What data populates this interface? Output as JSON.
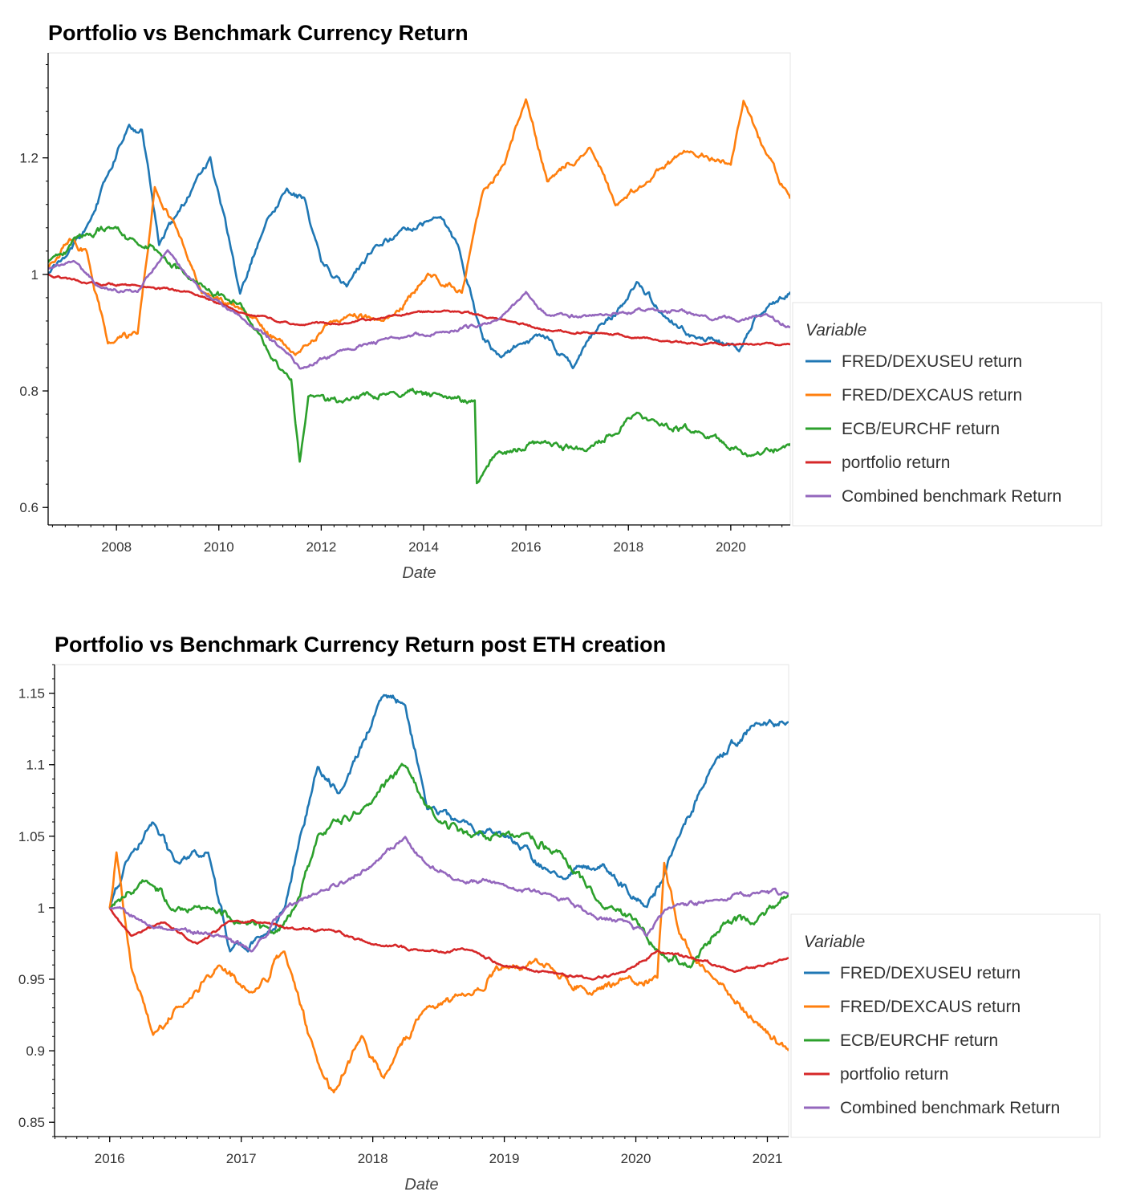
{
  "colors": {
    "FRED/DEXUSEU return": "#1f77b4",
    "FRED/DEXCAUS return": "#ff7f0e",
    "ECB/EURCHF return": "#2ca02c",
    "portfolio return": "#d62728",
    "Combined benchmark Return": "#9467bd"
  },
  "chart_data": [
    {
      "type": "line",
      "title": "Portfolio vs Benchmark Currency Return",
      "xlabel": "Date",
      "ylabel": "",
      "legend_title": "Variable",
      "legend_position": "right",
      "grid": false,
      "xlim": [
        "2006-09-01",
        "2021-03-01"
      ],
      "ylim": [
        0.57,
        1.38
      ],
      "x_ticks": [
        "2008",
        "2010",
        "2012",
        "2014",
        "2016",
        "2018",
        "2020"
      ],
      "y_ticks": [
        "0.6",
        "0.8",
        "1",
        "1.2"
      ],
      "series": [
        {
          "name": "FRED/DEXUSEU return",
          "x": [
            "2006-09-01",
            "2007-01-01",
            "2007-06-01",
            "2007-11-01",
            "2008-04-01",
            "2008-07-01",
            "2008-11-01",
            "2009-03-01",
            "2009-07-01",
            "2009-11-01",
            "2010-06-01",
            "2010-11-01",
            "2011-05-01",
            "2011-09-01",
            "2012-01-01",
            "2012-07-01",
            "2013-02-01",
            "2013-07-01",
            "2014-05-01",
            "2014-09-01",
            "2015-03-01",
            "2015-07-01",
            "2015-12-01",
            "2016-06-01",
            "2016-12-01",
            "2017-06-01",
            "2017-12-01",
            "2018-03-01",
            "2018-09-01",
            "2019-05-01",
            "2020-03-01",
            "2020-07-01",
            "2020-12-01",
            "2021-03-01"
          ],
          "y": [
            1.0,
            1.03,
            1.08,
            1.17,
            1.26,
            1.25,
            1.05,
            1.1,
            1.15,
            1.2,
            0.97,
            1.07,
            1.15,
            1.13,
            1.02,
            0.98,
            1.05,
            1.07,
            1.1,
            1.05,
            0.89,
            0.86,
            0.88,
            0.89,
            0.84,
            0.91,
            0.95,
            0.99,
            0.93,
            0.89,
            0.87,
            0.93,
            0.95,
            0.97
          ]
        },
        {
          "name": "FRED/DEXCAUS return",
          "x": [
            "2006-09-01",
            "2007-02-01",
            "2007-06-01",
            "2007-11-01",
            "2008-06-01",
            "2008-10-01",
            "2009-03-01",
            "2009-09-01",
            "2010-06-01",
            "2011-07-01",
            "2012-03-01",
            "2013-06-01",
            "2014-02-01",
            "2014-10-01",
            "2015-03-01",
            "2015-08-01",
            "2016-01-01",
            "2016-06-01",
            "2017-04-01",
            "2017-10-01",
            "2018-04-01",
            "2019-02-01",
            "2020-01-01",
            "2020-04-01",
            "2020-09-01",
            "2021-03-01"
          ],
          "y": [
            1.01,
            1.06,
            1.04,
            0.88,
            0.9,
            1.15,
            1.08,
            0.97,
            0.94,
            0.86,
            0.92,
            0.93,
            1.0,
            0.97,
            1.14,
            1.19,
            1.3,
            1.16,
            1.22,
            1.12,
            1.15,
            1.21,
            1.19,
            1.3,
            1.21,
            1.13
          ]
        },
        {
          "name": "ECB/EURCHF return",
          "x": [
            "2006-09-01",
            "2007-06-01",
            "2007-11-01",
            "2008-06-01",
            "2008-11-01",
            "2009-06-01",
            "2010-06-01",
            "2011-01-01",
            "2011-06-01",
            "2011-08-01",
            "2011-10-01",
            "2012-06-01",
            "2013-06-01",
            "2014-06-01",
            "2015-01-01",
            "2015-01-15",
            "2015-06-01",
            "2016-06-01",
            "2017-03-01",
            "2018-03-01",
            "2018-06-01",
            "2019-06-01",
            "2020-03-01",
            "2020-06-01",
            "2021-03-01"
          ],
          "y": [
            1.02,
            1.07,
            1.08,
            1.05,
            1.04,
            0.99,
            0.95,
            0.86,
            0.82,
            0.68,
            0.79,
            0.78,
            0.8,
            0.79,
            0.78,
            0.64,
            0.69,
            0.71,
            0.7,
            0.76,
            0.75,
            0.73,
            0.7,
            0.69,
            0.71
          ]
        },
        {
          "name": "portfolio return",
          "x": [
            "2006-09-01",
            "2007-06-01",
            "2008-06-01",
            "2009-06-01",
            "2010-06-01",
            "2011-06-01",
            "2012-06-01",
            "2013-06-01",
            "2014-06-01",
            "2015-06-01",
            "2016-06-01",
            "2017-06-01",
            "2018-06-01",
            "2019-06-01",
            "2020-06-01",
            "2021-03-01"
          ],
          "y": [
            1.0,
            0.985,
            0.98,
            0.97,
            0.935,
            0.915,
            0.915,
            0.93,
            0.94,
            0.925,
            0.905,
            0.9,
            0.89,
            0.88,
            0.88,
            0.88
          ]
        },
        {
          "name": "Combined benchmark Return",
          "x": [
            "2006-09-01",
            "2007-03-01",
            "2007-09-01",
            "2008-06-01",
            "2009-01-01",
            "2009-09-01",
            "2010-06-01",
            "2011-06-01",
            "2011-08-01",
            "2012-06-01",
            "2013-06-01",
            "2014-06-01",
            "2015-06-01",
            "2016-01-01",
            "2016-06-01",
            "2017-06-01",
            "2018-06-01",
            "2019-06-01",
            "2020-03-01",
            "2020-09-01",
            "2021-03-01"
          ],
          "y": [
            1.01,
            1.02,
            0.98,
            0.97,
            1.04,
            0.97,
            0.93,
            0.86,
            0.84,
            0.87,
            0.89,
            0.9,
            0.92,
            0.97,
            0.93,
            0.93,
            0.94,
            0.93,
            0.92,
            0.93,
            0.91
          ]
        }
      ]
    },
    {
      "type": "line",
      "title": "Portfolio vs Benchmark Currency Return post ETH creation",
      "xlabel": "Date",
      "ylabel": "",
      "legend_title": "Variable",
      "legend_position": "right",
      "grid": false,
      "xlim": [
        "2015-08-01",
        "2021-03-01"
      ],
      "ylim": [
        0.84,
        1.17
      ],
      "x_ticks": [
        "2016",
        "2017",
        "2018",
        "2019",
        "2020",
        "2021"
      ],
      "y_ticks": [
        "0.85",
        "0.9",
        "0.95",
        "1",
        "1.05",
        "1.1",
        "1.15"
      ],
      "series": [
        {
          "name": "FRED/DEXUSEU return",
          "x": [
            "2016-01-01",
            "2016-03-01",
            "2016-05-01",
            "2016-07-01",
            "2016-10-01",
            "2016-12-01",
            "2017-03-01",
            "2017-05-01",
            "2017-08-01",
            "2017-10-01",
            "2018-02-01",
            "2018-04-01",
            "2018-06-01",
            "2018-09-01",
            "2019-01-01",
            "2019-06-01",
            "2019-10-01",
            "2020-02-01",
            "2020-03-15",
            "2020-05-01",
            "2020-08-01",
            "2020-12-01",
            "2021-03-01"
          ],
          "y": [
            1.0,
            1.04,
            1.06,
            1.03,
            1.04,
            0.97,
            0.98,
            1.0,
            1.1,
            1.08,
            1.15,
            1.14,
            1.07,
            1.06,
            1.05,
            1.02,
            1.03,
            1.0,
            1.02,
            1.05,
            1.1,
            1.13,
            1.13
          ]
        },
        {
          "name": "FRED/DEXCAUS return",
          "x": [
            "2016-01-01",
            "2016-01-20",
            "2016-03-01",
            "2016-05-01",
            "2016-07-01",
            "2016-11-01",
            "2017-02-01",
            "2017-05-01",
            "2017-08-01",
            "2017-09-15",
            "2017-12-01",
            "2018-02-01",
            "2018-06-01",
            "2018-10-01",
            "2019-01-01",
            "2019-05-01",
            "2019-09-01",
            "2019-12-01",
            "2020-03-01",
            "2020-03-20",
            "2020-05-01",
            "2020-08-01",
            "2020-12-01",
            "2021-03-01"
          ],
          "y": [
            1.0,
            1.04,
            0.96,
            0.91,
            0.93,
            0.96,
            0.94,
            0.97,
            0.89,
            0.87,
            0.91,
            0.88,
            0.93,
            0.94,
            0.96,
            0.96,
            0.94,
            0.95,
            0.95,
            1.03,
            0.98,
            0.95,
            0.92,
            0.9
          ]
        },
        {
          "name": "ECB/EURCHF return",
          "x": [
            "2016-01-01",
            "2016-04-01",
            "2016-07-01",
            "2016-10-01",
            "2017-01-01",
            "2017-04-01",
            "2017-06-01",
            "2017-08-01",
            "2017-12-01",
            "2018-04-01",
            "2018-07-01",
            "2018-10-01",
            "2019-02-01",
            "2019-06-01",
            "2019-10-01",
            "2020-01-01",
            "2020-03-01",
            "2020-06-01",
            "2020-09-01",
            "2020-12-01",
            "2021-03-01"
          ],
          "y": [
            1.0,
            1.02,
            1.0,
            1.0,
            0.99,
            0.98,
            1.0,
            1.05,
            1.07,
            1.1,
            1.06,
            1.05,
            1.05,
            1.04,
            1.0,
            0.99,
            0.97,
            0.96,
            0.99,
            0.99,
            1.01
          ]
        },
        {
          "name": "portfolio return",
          "x": [
            "2016-01-01",
            "2016-03-01",
            "2016-06-01",
            "2016-09-01",
            "2016-12-01",
            "2017-03-01",
            "2017-06-01",
            "2017-09-01",
            "2018-01-01",
            "2018-06-01",
            "2018-10-01",
            "2019-01-01",
            "2019-05-01",
            "2019-09-01",
            "2019-12-01",
            "2020-03-01",
            "2020-06-01",
            "2020-10-01",
            "2021-03-01"
          ],
          "y": [
            1.0,
            0.98,
            0.99,
            0.975,
            0.99,
            0.99,
            0.985,
            0.985,
            0.975,
            0.97,
            0.97,
            0.96,
            0.955,
            0.95,
            0.955,
            0.97,
            0.965,
            0.955,
            0.965
          ]
        },
        {
          "name": "Combined benchmark Return",
          "x": [
            "2016-01-01",
            "2016-04-01",
            "2016-07-01",
            "2016-11-01",
            "2017-02-01",
            "2017-05-01",
            "2017-08-01",
            "2018-01-01",
            "2018-04-01",
            "2018-06-01",
            "2018-09-01",
            "2019-01-01",
            "2019-05-01",
            "2019-09-01",
            "2019-12-01",
            "2020-02-01",
            "2020-04-01",
            "2020-08-01",
            "2020-12-01",
            "2021-03-01"
          ],
          "y": [
            1.0,
            0.99,
            0.985,
            0.98,
            0.97,
            1.0,
            1.01,
            1.03,
            1.05,
            1.03,
            1.02,
            1.015,
            1.01,
            0.995,
            0.99,
            0.98,
            1.0,
            1.005,
            1.01,
            1.01
          ]
        }
      ]
    }
  ]
}
